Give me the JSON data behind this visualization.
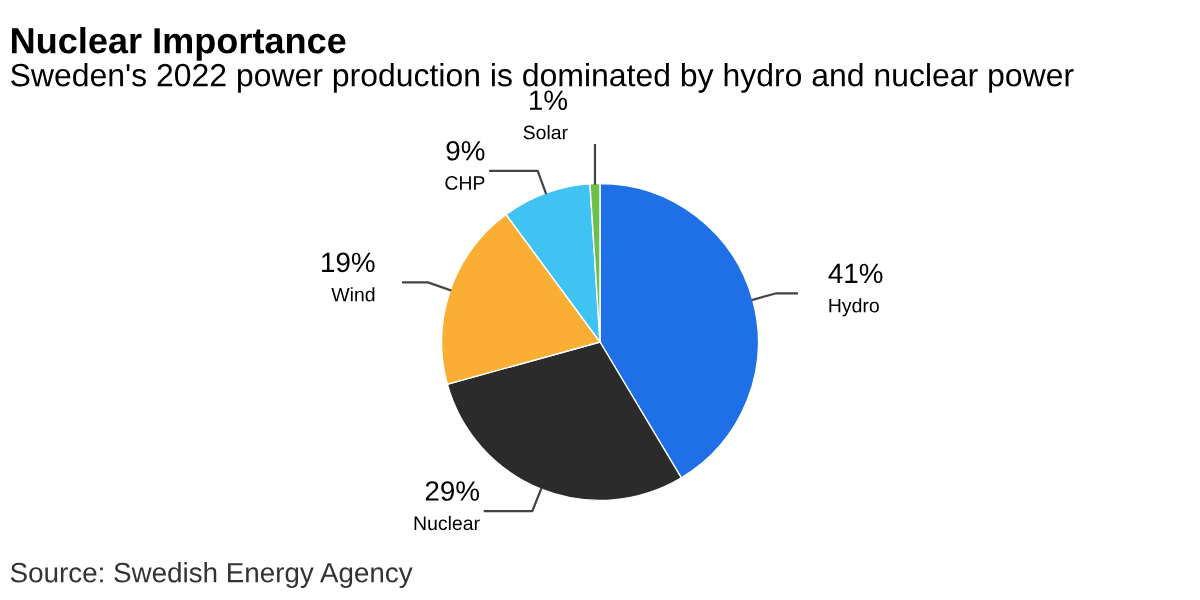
{
  "chart_data": {
    "type": "pie",
    "title": "Nuclear Importance",
    "subtitle": "Sweden's 2022 power production is dominated by hydro and nuclear power",
    "categories": [
      "Hydro",
      "Nuclear",
      "Wind",
      "CHP",
      "Solar"
    ],
    "values": [
      41,
      29,
      19,
      9,
      1
    ],
    "value_labels": [
      "41%",
      "29%",
      "19%",
      "9%",
      "1%"
    ],
    "colors": [
      "#1f6fe6",
      "#2b2b2b",
      "#fbae34",
      "#3ec3f2",
      "#6cc04a"
    ],
    "annotations": [
      "Source: Swedish Energy Agency"
    ]
  }
}
